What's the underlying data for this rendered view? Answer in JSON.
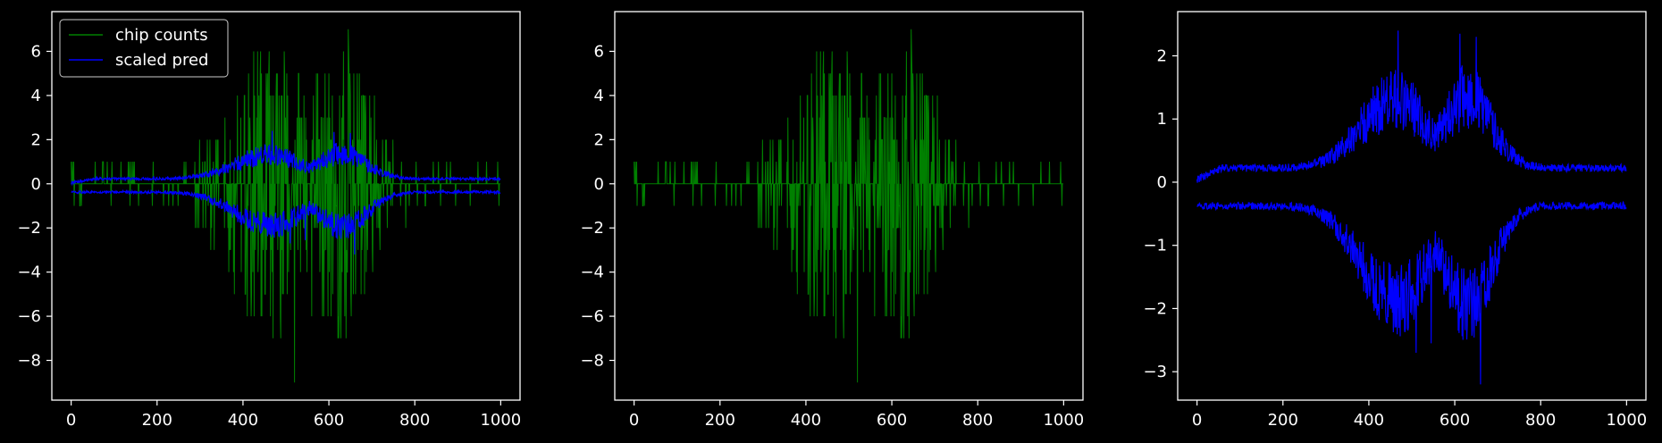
{
  "chart_data": [
    {
      "type": "line",
      "title": "",
      "xlabel": "",
      "ylabel": "",
      "xlim": [
        -45,
        1045
      ],
      "ylim": [
        -9.8,
        7.8
      ],
      "xticks": [
        0,
        200,
        400,
        600,
        800,
        1000
      ],
      "yticks": [
        -8,
        -6,
        -4,
        -2,
        0,
        2,
        4,
        6
      ],
      "xtick_labels": [
        "0",
        "200",
        "400",
        "600",
        "800",
        "1000"
      ],
      "ytick_labels": [
        "−8",
        "−6",
        "−4",
        "−2",
        "0",
        "2",
        "4",
        "6"
      ],
      "grid": false,
      "legend": {
        "position": "top-left",
        "entries": [
          "chip counts",
          "scaled pred"
        ]
      },
      "series": [
        {
          "name": "chip counts",
          "color": "#008000",
          "kind": "counts",
          "x_range": [
            0,
            999
          ],
          "peak_max": 7,
          "peak_min": -9,
          "peak_max_x": 645,
          "peak_min_x": 520
        },
        {
          "name": "scaled pred",
          "color": "#0000ff",
          "kind": "envelope",
          "x_range": [
            0,
            999
          ],
          "upper_max": 2.4,
          "lower_min": -3.2
        }
      ]
    },
    {
      "type": "line",
      "title": "",
      "xlabel": "",
      "ylabel": "",
      "xlim": [
        -45,
        1045
      ],
      "ylim": [
        -9.8,
        7.8
      ],
      "xticks": [
        0,
        200,
        400,
        600,
        800,
        1000
      ],
      "yticks": [
        -8,
        -6,
        -4,
        -2,
        0,
        2,
        4,
        6
      ],
      "xtick_labels": [
        "0",
        "200",
        "400",
        "600",
        "800",
        "1000"
      ],
      "ytick_labels": [
        "−8",
        "−6",
        "−4",
        "−2",
        "0",
        "2",
        "4",
        "6"
      ],
      "grid": false,
      "series": [
        {
          "color": "#008000",
          "kind": "counts",
          "x_range": [
            0,
            999
          ],
          "peak_max": 7,
          "peak_min": -9,
          "peak_max_x": 645,
          "peak_min_x": 520
        }
      ]
    },
    {
      "type": "line",
      "title": "",
      "xlabel": "",
      "ylabel": "",
      "xlim": [
        -45,
        1045
      ],
      "ylim": [
        -3.45,
        2.7
      ],
      "xticks": [
        0,
        200,
        400,
        600,
        800,
        1000
      ],
      "yticks": [
        -3,
        -2,
        -1,
        0,
        1,
        2
      ],
      "xtick_labels": [
        "0",
        "200",
        "400",
        "600",
        "800",
        "1000"
      ],
      "ytick_labels": [
        "−3",
        "−2",
        "−1",
        "0",
        "1",
        "2"
      ],
      "grid": false,
      "series": [
        {
          "color": "#0000ff",
          "kind": "envelope",
          "x_range": [
            0,
            999
          ],
          "upper_max": 2.4,
          "lower_min": -3.2
        }
      ]
    }
  ]
}
